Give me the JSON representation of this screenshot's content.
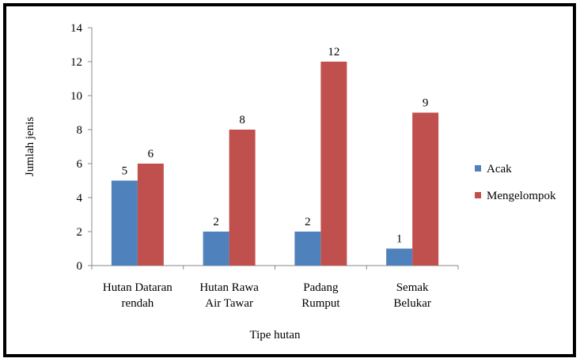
{
  "chart_data": {
    "type": "bar",
    "categories": [
      [
        "Hutan Dataran",
        "rendah"
      ],
      [
        "Hutan Rawa",
        "Air Tawar"
      ],
      [
        "Padang",
        "Rumput"
      ],
      [
        "Semak",
        "Belukar"
      ]
    ],
    "series": [
      {
        "name": "Acak",
        "color": "#4F81BD",
        "values": [
          5,
          2,
          2,
          1
        ]
      },
      {
        "name": "Mengelompok",
        "color": "#C0504D",
        "values": [
          6,
          8,
          12,
          9
        ]
      }
    ],
    "xlabel": "Tipe hutan",
    "ylabel": "Jumlah jenis",
    "ylim": [
      0,
      14
    ],
    "yticks": [
      0,
      2,
      4,
      6,
      8,
      10,
      12,
      14
    ],
    "grid": false,
    "legend": "right"
  }
}
